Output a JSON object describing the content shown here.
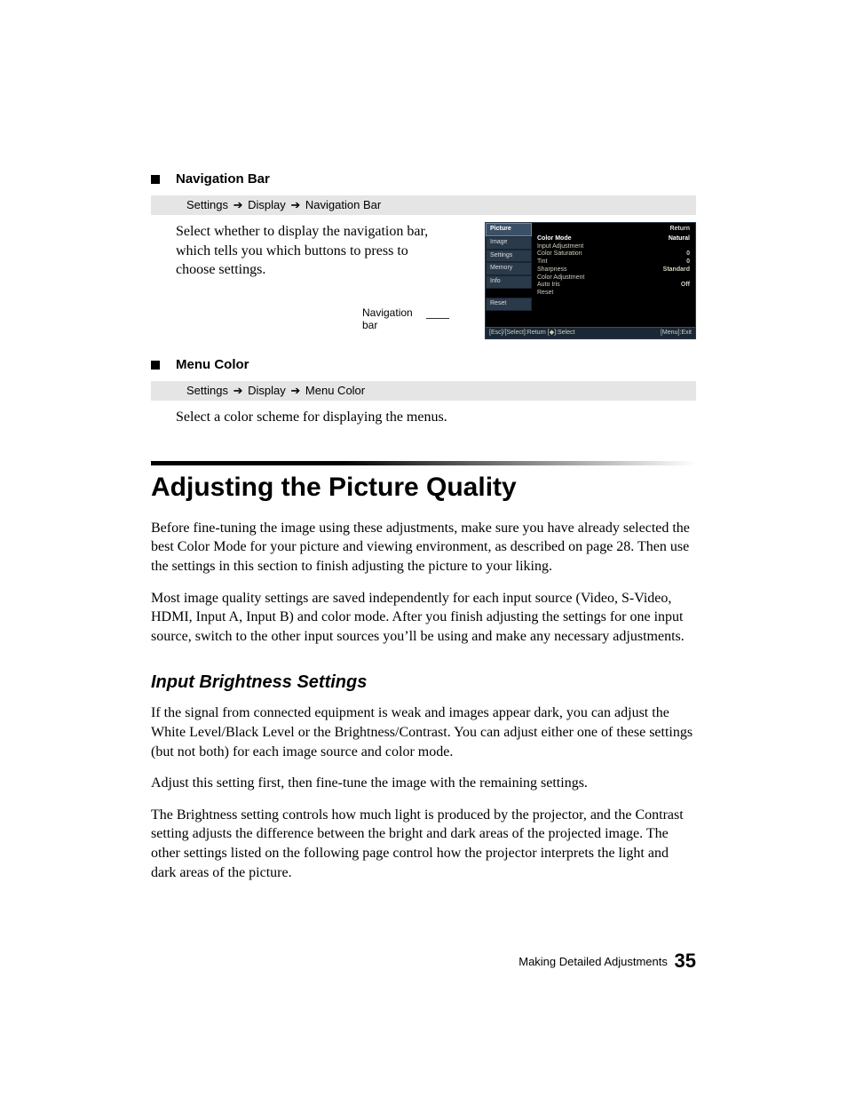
{
  "nav_bar_section": {
    "title": "Navigation Bar",
    "breadcrumb": [
      "Settings",
      "Display",
      "Navigation Bar"
    ],
    "body": "Select whether to display the navigation bar, which tells you which buttons to press to choose settings."
  },
  "menu_color_section": {
    "title": "Menu Color",
    "breadcrumb": [
      "Settings",
      "Display",
      "Menu Color"
    ],
    "body": "Select a color scheme for displaying the menus."
  },
  "osd": {
    "caption": "Navigation bar",
    "side_items": [
      "Picture",
      "Image",
      "Settings",
      "Memory",
      "Info",
      "Reset"
    ],
    "side_active_index": 0,
    "return_label": "Return",
    "rows": [
      {
        "label": "Color Mode",
        "value": "Natural",
        "hl": true
      },
      {
        "label": "Input Adjustment",
        "value": ""
      },
      {
        "label": "Color Saturation",
        "value": "0"
      },
      {
        "label": "Tint",
        "value": "0"
      },
      {
        "label": "Sharpness",
        "value": "Standard"
      },
      {
        "label": "Color Adjustment",
        "value": ""
      },
      {
        "label": "Auto Iris",
        "value": "Off"
      },
      {
        "label": "Reset",
        "value": ""
      }
    ],
    "foot_left": "[Esc]/[Select]:Return [◆]:Select",
    "foot_right": "[Menu]:Exit"
  },
  "main_heading": "Adjusting the Picture Quality",
  "para1": "Before fine-tuning the image using these adjustments, make sure you have already selected the best Color Mode for your picture and viewing environment, as described on page 28. Then use the settings in this section to finish adjusting the picture to your liking.",
  "para2": "Most image quality settings are saved independently for each input source (Video, S-Video, HDMI, Input A, Input B) and color mode. After you finish adjusting the settings for one input source, switch to the other input sources you’ll be using and make any necessary adjustments.",
  "sub_heading": "Input Brightness Settings",
  "para3": "If the signal from connected equipment is weak and images appear dark, you can adjust the White Level/Black Level or the Brightness/Contrast. You can adjust either one of these settings (but not both) for each image source and color mode.",
  "para4": "Adjust this setting first, then fine-tune the image with the remaining settings.",
  "para5": "The Brightness setting controls how much light is produced by the projector, and the Contrast setting adjusts the difference between the bright and dark areas of the projected image. The other settings listed on the following page control how the projector interprets the light and dark areas of the picture.",
  "footer": {
    "chapter": "Making Detailed Adjustments",
    "page": "35"
  },
  "colors": {
    "breadcrumb_bg": "#e5e5e5",
    "osd_bg": "#000000",
    "osd_side_bg": "#2a3a4a",
    "osd_side_active": "#3a5066"
  }
}
